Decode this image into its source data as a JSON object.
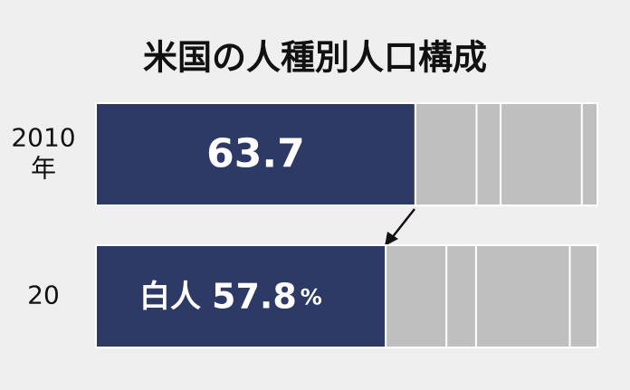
{
  "chart_data": {
    "type": "stacked-bar",
    "orientation": "horizontal",
    "title": "米国の人種別人口構成",
    "categories": [
      "2010年",
      "20"
    ],
    "xlim": [
      0,
      100
    ],
    "series": [
      {
        "name": "白人",
        "color": "#2d3a66",
        "values": [
          63.7,
          57.8
        ],
        "value_labels": [
          "63.7",
          "57.8%"
        ]
      },
      {
        "color": "#bfbfbf",
        "values": [
          12.2,
          12.1
        ]
      },
      {
        "color": "#bfbfbf",
        "values": [
          4.8,
          5.9
        ]
      },
      {
        "color": "#bfbfbf",
        "values": [
          16.2,
          18.7
        ]
      },
      {
        "color": "#bfbfbf",
        "values": [
          3.1,
          5.5
        ]
      }
    ]
  }
}
